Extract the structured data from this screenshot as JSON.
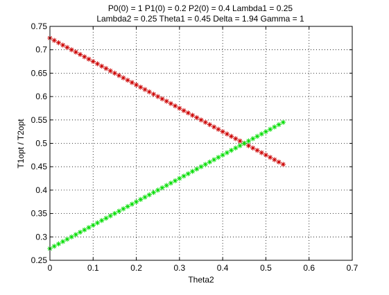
{
  "chart_data": {
    "type": "scatter",
    "title": [
      "P0(0) = 1 P1(0) = 0.2 P2(0) = 0.4 Lambda1 = 0.25",
      "Lambda2 = 0.25 Theta1 = 0.45 Delta = 1.94 Gamma = 1"
    ],
    "xlabel": "Theta2",
    "ylabel": "T1opt / T2opt",
    "xlim": [
      0,
      0.7
    ],
    "ylim": [
      0.25,
      0.75
    ],
    "xticks": [
      0,
      0.1,
      0.2,
      0.3,
      0.4,
      0.5,
      0.6,
      0.7
    ],
    "xtick_labels": [
      "0",
      "0.1",
      "0.2",
      "0.3",
      "0.4",
      "0.5",
      "0.6",
      "0.7"
    ],
    "yticks": [
      0.25,
      0.3,
      0.35,
      0.4,
      0.45,
      0.5,
      0.55,
      0.6,
      0.65,
      0.7,
      0.75
    ],
    "ytick_labels": [
      "0.25",
      "0.3",
      "0.35",
      "0.4",
      "0.45",
      "0.5",
      "0.55",
      "0.6",
      "0.65",
      "0.7",
      "0.75"
    ],
    "grid": true,
    "marker": "*",
    "x": [
      0,
      0.01,
      0.02,
      0.03,
      0.04,
      0.05,
      0.06,
      0.07,
      0.08,
      0.09,
      0.1,
      0.11,
      0.12,
      0.13,
      0.14,
      0.15,
      0.16,
      0.17,
      0.18,
      0.19,
      0.2,
      0.21,
      0.22,
      0.23,
      0.24,
      0.25,
      0.26,
      0.27,
      0.28,
      0.29,
      0.3,
      0.31,
      0.32,
      0.33,
      0.34,
      0.35,
      0.36,
      0.37,
      0.38,
      0.39,
      0.4,
      0.41,
      0.42,
      0.43,
      0.44,
      0.45,
      0.46,
      0.47,
      0.48,
      0.49,
      0.5,
      0.51,
      0.52,
      0.53,
      0.54
    ],
    "series": [
      {
        "color": "#cc0000",
        "values": [
          0.725,
          0.72,
          0.715,
          0.71,
          0.705,
          0.7,
          0.695,
          0.69,
          0.685,
          0.68,
          0.675,
          0.67,
          0.665,
          0.66,
          0.655,
          0.65,
          0.645,
          0.64,
          0.635,
          0.63,
          0.625,
          0.62,
          0.615,
          0.61,
          0.605,
          0.6,
          0.595,
          0.59,
          0.585,
          0.58,
          0.575,
          0.57,
          0.565,
          0.56,
          0.555,
          0.55,
          0.545,
          0.54,
          0.535,
          0.53,
          0.525,
          0.52,
          0.515,
          0.51,
          0.505,
          0.5,
          0.495,
          0.49,
          0.485,
          0.48,
          0.475,
          0.47,
          0.465,
          0.46,
          0.455
        ]
      },
      {
        "color": "#00dd00",
        "values": [
          0.275,
          0.28,
          0.285,
          0.29,
          0.295,
          0.3,
          0.305,
          0.31,
          0.315,
          0.32,
          0.325,
          0.33,
          0.335,
          0.34,
          0.345,
          0.35,
          0.355,
          0.36,
          0.365,
          0.37,
          0.375,
          0.38,
          0.385,
          0.39,
          0.395,
          0.4,
          0.405,
          0.41,
          0.415,
          0.42,
          0.425,
          0.43,
          0.435,
          0.44,
          0.445,
          0.45,
          0.455,
          0.46,
          0.465,
          0.47,
          0.475,
          0.48,
          0.485,
          0.49,
          0.495,
          0.5,
          0.505,
          0.51,
          0.515,
          0.52,
          0.525,
          0.53,
          0.535,
          0.54,
          0.545
        ]
      }
    ]
  }
}
